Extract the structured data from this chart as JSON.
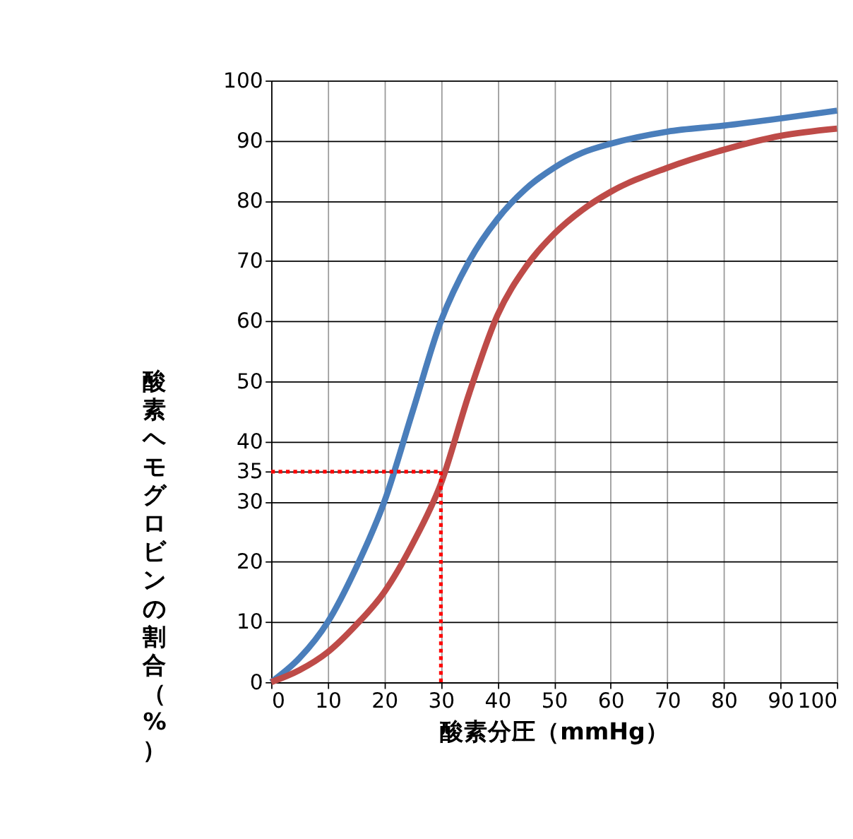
{
  "chart_data": {
    "type": "line",
    "xlabel": "酸素分圧（mmHg）",
    "ylabel": "酸素ヘモグロビンの割合（%）",
    "xlim": [
      0,
      100
    ],
    "ylim": [
      0,
      100
    ],
    "xticks": [
      0,
      10,
      20,
      30,
      40,
      50,
      60,
      70,
      80,
      90,
      100
    ],
    "yticks": [
      0,
      10,
      20,
      30,
      35,
      40,
      50,
      60,
      70,
      80,
      90,
      100
    ],
    "grid": true,
    "legend": false,
    "marker": "none",
    "line_style": "solid",
    "series": [
      {
        "color": "#4a7ebb",
        "x": [
          0,
          5,
          10,
          15,
          20,
          25,
          30,
          35,
          40,
          45,
          50,
          55,
          60,
          70,
          80,
          90,
          100
        ],
        "values": [
          0,
          4,
          10,
          19,
          30,
          45,
          60,
          70,
          77,
          82,
          85.5,
          88,
          89.5,
          91.5,
          92.5,
          93.7,
          95
        ]
      },
      {
        "color": "#be4b48",
        "x": [
          0,
          5,
          10,
          15,
          20,
          25,
          30,
          35,
          40,
          45,
          50,
          55,
          60,
          70,
          80,
          90,
          100
        ],
        "values": [
          0,
          2,
          5,
          9.5,
          15,
          23,
          33,
          48,
          61,
          69,
          74.5,
          78.5,
          81.5,
          85.5,
          88.5,
          90.8,
          92
        ]
      }
    ],
    "ref_lines": [
      {
        "axis": "y",
        "value": 35,
        "color": "#ff0000",
        "line_style": "dotted"
      },
      {
        "axis": "x",
        "value": 30,
        "color": "#ff0000",
        "line_style": "dotted"
      }
    ]
  }
}
